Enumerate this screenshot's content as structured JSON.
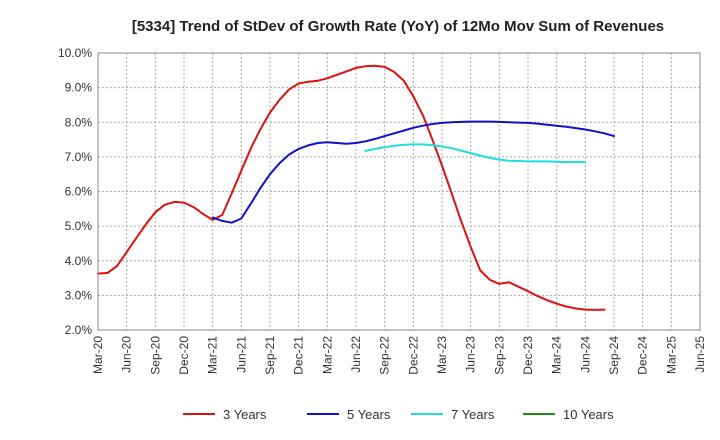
{
  "chart_data": {
    "type": "line",
    "title": "[5334]  Trend of StDev of Growth Rate (YoY) of 12Mo Mov Sum of Revenues",
    "xlabel": "",
    "ylabel": "",
    "ylim": [
      2.0,
      10.0
    ],
    "y_ticks": [
      "2.0%",
      "3.0%",
      "4.0%",
      "5.0%",
      "6.0%",
      "7.0%",
      "8.0%",
      "9.0%",
      "10.0%"
    ],
    "x_ticks": [
      "Mar-20",
      "Jun-20",
      "Sep-20",
      "Dec-20",
      "Mar-21",
      "Jun-21",
      "Sep-21",
      "Dec-21",
      "Mar-22",
      "Jun-22",
      "Sep-22",
      "Dec-22",
      "Mar-23",
      "Jun-23",
      "Sep-23",
      "Dec-23",
      "Mar-24",
      "Jun-24",
      "Sep-24",
      "Dec-24",
      "Mar-25",
      "Jun-25"
    ],
    "grid": true,
    "legend_position": "bottom",
    "series": [
      {
        "name": "3 Years",
        "color": "#dd1111",
        "start_index": 0,
        "values": [
          3.63,
          3.65,
          3.85,
          4.25,
          4.65,
          5.05,
          5.4,
          5.62,
          5.7,
          5.68,
          5.55,
          5.35,
          5.18,
          5.32,
          5.95,
          6.6,
          7.25,
          7.8,
          8.28,
          8.65,
          8.95,
          9.12,
          9.17,
          9.2,
          9.27,
          9.37,
          9.47,
          9.57,
          9.62,
          9.63,
          9.6,
          9.45,
          9.2,
          8.75,
          8.2,
          7.5,
          6.75,
          5.95,
          5.15,
          4.4,
          3.72,
          3.45,
          3.33,
          3.38,
          3.25,
          3.12,
          2.98,
          2.86,
          2.76,
          2.68,
          2.62,
          2.59,
          2.58,
          2.59
        ]
      },
      {
        "name": "5 Years",
        "color": "#1111cc",
        "start_index": 12,
        "values": [
          5.25,
          5.15,
          5.1,
          5.22,
          5.65,
          6.1,
          6.5,
          6.82,
          7.07,
          7.23,
          7.33,
          7.4,
          7.42,
          7.4,
          7.38,
          7.4,
          7.45,
          7.52,
          7.6,
          7.68,
          7.76,
          7.84,
          7.9,
          7.95,
          7.98,
          8.0,
          8.01,
          8.02,
          8.02,
          8.02,
          8.01,
          8.0,
          7.99,
          7.98,
          7.96,
          7.93,
          7.9,
          7.87,
          7.83,
          7.79,
          7.74,
          7.68,
          7.6
        ]
      },
      {
        "name": "7 Years",
        "color": "#22dddd",
        "start_index": 28,
        "values": [
          7.17,
          7.23,
          7.28,
          7.32,
          7.35,
          7.36,
          7.36,
          7.34,
          7.3,
          7.25,
          7.18,
          7.11,
          7.04,
          6.97,
          6.92,
          6.89,
          6.88,
          6.87,
          6.87,
          6.87,
          6.86,
          6.85,
          6.85,
          6.85
        ]
      },
      {
        "name": "10 Years",
        "color": "#228822",
        "start_index": 0,
        "values": []
      }
    ]
  }
}
